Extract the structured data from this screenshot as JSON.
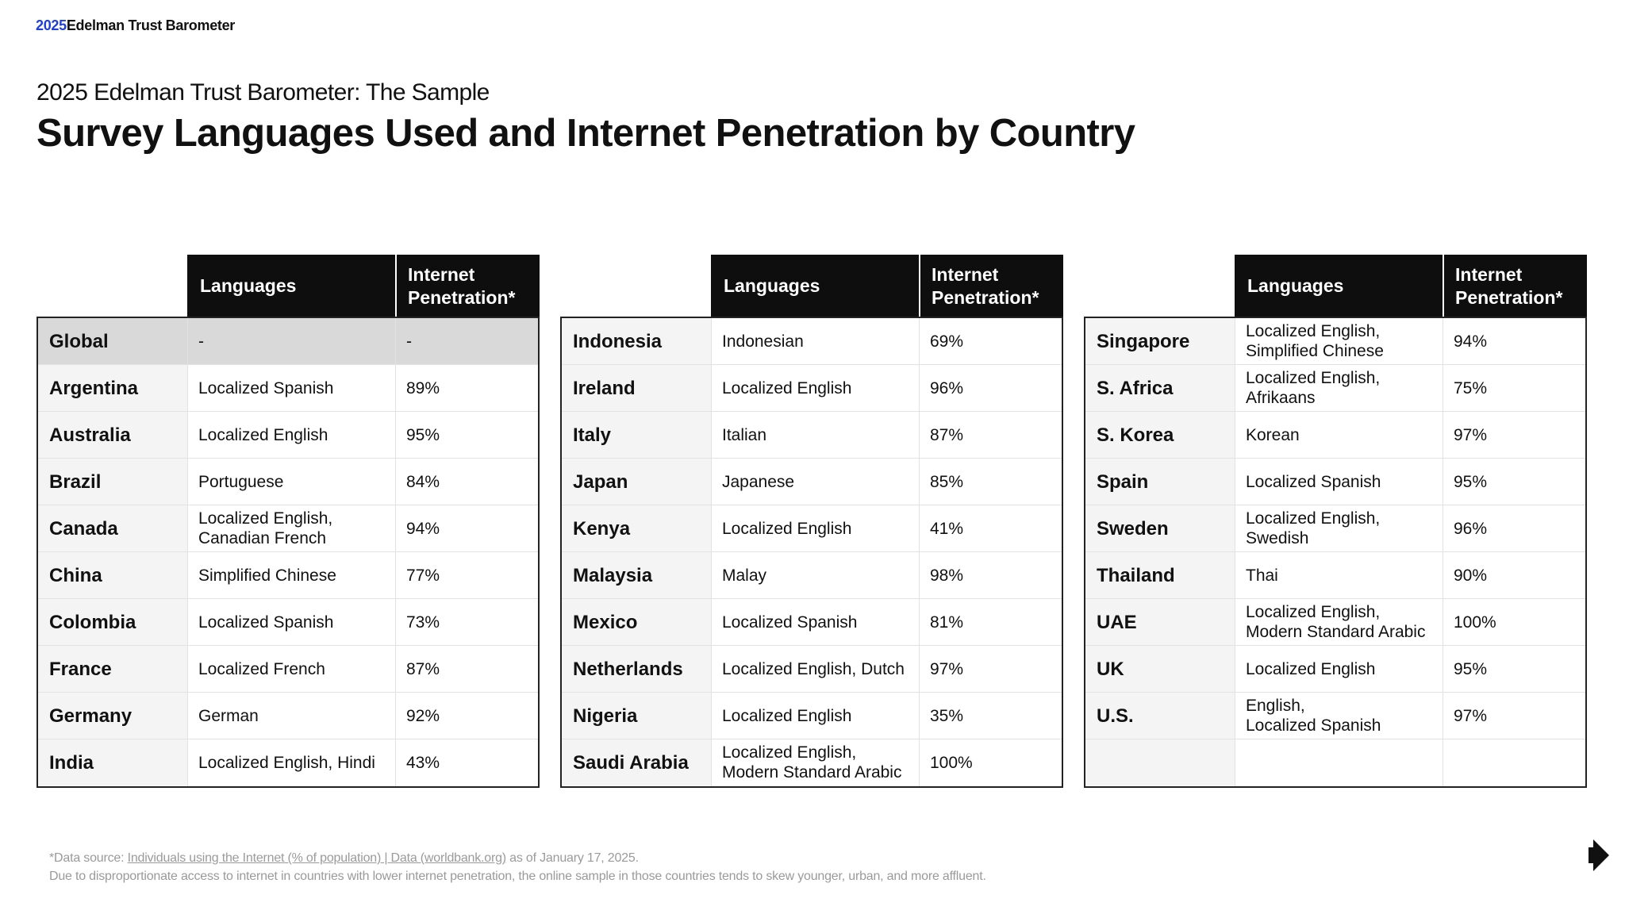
{
  "brand": {
    "year": "2025",
    "name": "Edelman Trust Barometer"
  },
  "subtitle": "2025 Edelman Trust Barometer: The Sample",
  "title": "Survey Languages Used and Internet Penetration by Country",
  "columns": {
    "languages": "Languages",
    "penetration_line1": "Internet",
    "penetration_line2": "Penetration*"
  },
  "tables": [
    {
      "rows": [
        {
          "country": "Global",
          "lang1": "-",
          "lang2": "",
          "pen": "-",
          "global": true
        },
        {
          "country": "Argentina",
          "lang1": "Localized Spanish",
          "lang2": "",
          "pen": "89%"
        },
        {
          "country": "Australia",
          "lang1": "Localized English",
          "lang2": "",
          "pen": "95%"
        },
        {
          "country": "Brazil",
          "lang1": "Portuguese",
          "lang2": "",
          "pen": "84%"
        },
        {
          "country": "Canada",
          "lang1": "Localized English,",
          "lang2": "Canadian French",
          "pen": "94%"
        },
        {
          "country": "China",
          "lang1": "Simplified Chinese",
          "lang2": "",
          "pen": "77%"
        },
        {
          "country": "Colombia",
          "lang1": "Localized Spanish",
          "lang2": "",
          "pen": "73%"
        },
        {
          "country": "France",
          "lang1": "Localized French",
          "lang2": "",
          "pen": "87%"
        },
        {
          "country": "Germany",
          "lang1": "German",
          "lang2": "",
          "pen": "92%"
        },
        {
          "country": "India",
          "lang1": "Localized English, Hindi",
          "lang2": "",
          "pen": "43%"
        }
      ]
    },
    {
      "rows": [
        {
          "country": "Indonesia",
          "lang1": "Indonesian",
          "lang2": "",
          "pen": "69%"
        },
        {
          "country": "Ireland",
          "lang1": "Localized English",
          "lang2": "",
          "pen": "96%"
        },
        {
          "country": "Italy",
          "lang1": "Italian",
          "lang2": "",
          "pen": "87%"
        },
        {
          "country": "Japan",
          "lang1": "Japanese",
          "lang2": "",
          "pen": "85%"
        },
        {
          "country": "Kenya",
          "lang1": "Localized English",
          "lang2": "",
          "pen": "41%"
        },
        {
          "country": "Malaysia",
          "lang1": "Malay",
          "lang2": "",
          "pen": "98%"
        },
        {
          "country": "Mexico",
          "lang1": "Localized Spanish",
          "lang2": "",
          "pen": "81%"
        },
        {
          "country": "Netherlands",
          "lang1": "Localized English, Dutch",
          "lang2": "",
          "pen": "97%"
        },
        {
          "country": "Nigeria",
          "lang1": "Localized English",
          "lang2": "",
          "pen": "35%"
        },
        {
          "country": "Saudi Arabia",
          "lang1": "Localized English,",
          "lang2": "Modern Standard Arabic",
          "pen": "100%"
        }
      ]
    },
    {
      "rows": [
        {
          "country": "Singapore",
          "lang1": "Localized English,",
          "lang2": "Simplified Chinese",
          "pen": "94%"
        },
        {
          "country": "S. Africa",
          "lang1": "Localized English,",
          "lang2": "Afrikaans",
          "pen": "75%"
        },
        {
          "country": "S. Korea",
          "lang1": "Korean",
          "lang2": "",
          "pen": "97%"
        },
        {
          "country": "Spain",
          "lang1": "Localized Spanish",
          "lang2": "",
          "pen": "95%"
        },
        {
          "country": "Sweden",
          "lang1": "Localized English,",
          "lang2": "Swedish",
          "pen": "96%"
        },
        {
          "country": "Thailand",
          "lang1": "Thai",
          "lang2": "",
          "pen": "90%"
        },
        {
          "country": "UAE",
          "lang1": "Localized English,",
          "lang2": "Modern Standard Arabic",
          "pen": "100%"
        },
        {
          "country": "UK",
          "lang1": "Localized English",
          "lang2": "",
          "pen": "95%"
        },
        {
          "country": "U.S.",
          "lang1": "English,",
          "lang2": "Localized Spanish",
          "pen": "97%"
        },
        {
          "country": "",
          "lang1": "",
          "lang2": "",
          "pen": ""
        }
      ]
    }
  ],
  "footnote": {
    "prefix": "*Data source: ",
    "link_text": "Individuals using the Internet (% of population) | Data (worldbank.org)",
    "suffix": " as of January 17, 2025.",
    "line2": "Due to disproportionate access to internet in countries with lower internet penetration, the online sample in those countries tends to skew younger, urban, and more affluent."
  },
  "icons": {
    "next": "next-arrow-icon"
  }
}
